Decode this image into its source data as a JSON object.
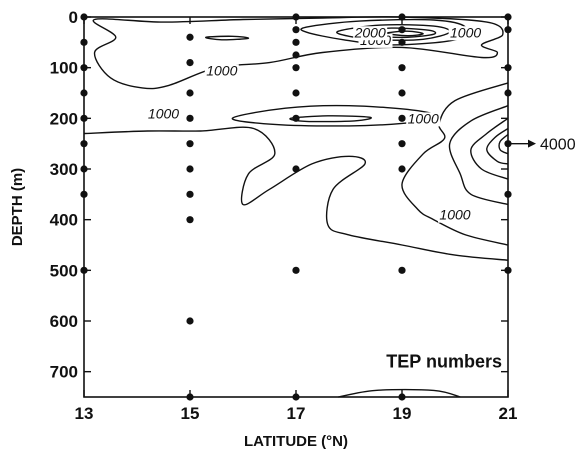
{
  "chart_data": {
    "type": "contour",
    "xlabel": "LATITUDE (°N)",
    "ylabel": "DEPTH (m)",
    "xlim": [
      13,
      21
    ],
    "ylim": [
      750,
      0
    ],
    "x_ticks": [
      13,
      15,
      17,
      19,
      21
    ],
    "y_ticks": [
      0,
      100,
      200,
      300,
      400,
      500,
      600,
      700
    ],
    "grid": false,
    "annotation": "TEP numbers",
    "off_axis_label": "4000",
    "contour_labels": [
      {
        "text": "1000",
        "lat": 15.6,
        "depth": 115
      },
      {
        "text": "1000",
        "lat": 14.5,
        "depth": 200
      },
      {
        "text": "1000",
        "lat": 19.4,
        "depth": 210
      },
      {
        "text": "1000",
        "lat": 20.0,
        "depth": 400
      },
      {
        "text": "1000",
        "lat": 18.5,
        "depth": 55
      },
      {
        "text": "2000",
        "lat": 18.4,
        "depth": 40
      },
      {
        "text": "1000",
        "lat": 20.2,
        "depth": 40
      }
    ],
    "sample_points": [
      {
        "lat": 13,
        "depth": 0
      },
      {
        "lat": 13,
        "depth": 50
      },
      {
        "lat": 13,
        "depth": 100
      },
      {
        "lat": 13,
        "depth": 150
      },
      {
        "lat": 13,
        "depth": 200
      },
      {
        "lat": 13,
        "depth": 250
      },
      {
        "lat": 13,
        "depth": 300
      },
      {
        "lat": 13,
        "depth": 350
      },
      {
        "lat": 13,
        "depth": 500
      },
      {
        "lat": 15,
        "depth": 40
      },
      {
        "lat": 15,
        "depth": 90
      },
      {
        "lat": 15,
        "depth": 150
      },
      {
        "lat": 15,
        "depth": 200
      },
      {
        "lat": 15,
        "depth": 250
      },
      {
        "lat": 15,
        "depth": 300
      },
      {
        "lat": 15,
        "depth": 350
      },
      {
        "lat": 15,
        "depth": 400
      },
      {
        "lat": 15,
        "depth": 600
      },
      {
        "lat": 15,
        "depth": 750
      },
      {
        "lat": 17,
        "depth": 0
      },
      {
        "lat": 17,
        "depth": 25
      },
      {
        "lat": 17,
        "depth": 50
      },
      {
        "lat": 17,
        "depth": 75
      },
      {
        "lat": 17,
        "depth": 100
      },
      {
        "lat": 17,
        "depth": 150
      },
      {
        "lat": 17,
        "depth": 200
      },
      {
        "lat": 17,
        "depth": 300
      },
      {
        "lat": 17,
        "depth": 500
      },
      {
        "lat": 17,
        "depth": 750
      },
      {
        "lat": 19,
        "depth": 0
      },
      {
        "lat": 19,
        "depth": 25
      },
      {
        "lat": 19,
        "depth": 50
      },
      {
        "lat": 19,
        "depth": 100
      },
      {
        "lat": 19,
        "depth": 150
      },
      {
        "lat": 19,
        "depth": 200
      },
      {
        "lat": 19,
        "depth": 250
      },
      {
        "lat": 19,
        "depth": 300
      },
      {
        "lat": 19,
        "depth": 500
      },
      {
        "lat": 19,
        "depth": 750
      },
      {
        "lat": 21,
        "depth": 0
      },
      {
        "lat": 21,
        "depth": 25
      },
      {
        "lat": 21,
        "depth": 100
      },
      {
        "lat": 21,
        "depth": 150
      },
      {
        "lat": 21,
        "depth": 250
      },
      {
        "lat": 21,
        "depth": 350
      },
      {
        "lat": 21,
        "depth": 500
      }
    ],
    "contours": [
      {
        "name": "shallow-left-loop",
        "points": [
          [
            13.2,
            5
          ],
          [
            14.5,
            10
          ],
          [
            16,
            5
          ],
          [
            17.5,
            2
          ],
          [
            19,
            0
          ],
          [
            20.6,
            10
          ],
          [
            20.9,
            35
          ],
          [
            20.5,
            55
          ],
          [
            20.8,
            70
          ],
          [
            20.5,
            80
          ],
          [
            19,
            60
          ],
          [
            17.5,
            70
          ],
          [
            16.5,
            90
          ],
          [
            15.5,
            100
          ],
          [
            14.6,
            135
          ],
          [
            14.1,
            140
          ],
          [
            13.5,
            120
          ],
          [
            13.2,
            70
          ],
          [
            13.6,
            40
          ],
          [
            13.2,
            5
          ]
        ],
        "closed": true
      },
      {
        "name": "mid-lens",
        "points": [
          [
            15.8,
            200
          ],
          [
            16.8,
            180
          ],
          [
            18,
            175
          ],
          [
            19.3,
            185
          ],
          [
            19.7,
            200
          ],
          [
            19,
            210
          ],
          [
            18,
            215
          ],
          [
            16.6,
            212
          ],
          [
            15.8,
            200
          ]
        ],
        "closed": true
      },
      {
        "name": "small-lens-17-200",
        "points": [
          [
            16.9,
            200
          ],
          [
            17.6,
            195
          ],
          [
            18.4,
            198
          ],
          [
            18.1,
            205
          ],
          [
            17.2,
            206
          ],
          [
            16.9,
            200
          ]
        ],
        "closed": true
      },
      {
        "name": "thin-tick-15-40",
        "points": [
          [
            15.3,
            40
          ],
          [
            15.8,
            38
          ],
          [
            16.1,
            42
          ],
          [
            15.6,
            45
          ],
          [
            15.3,
            40
          ]
        ],
        "closed": true
      },
      {
        "name": "surface-bullseye-1",
        "points": [
          [
            17.2,
            20
          ],
          [
            18.2,
            8
          ],
          [
            19.6,
            6
          ],
          [
            20.2,
            20
          ],
          [
            20.0,
            45
          ],
          [
            18.8,
            55
          ],
          [
            17.9,
            45
          ],
          [
            17.2,
            30
          ],
          [
            17.2,
            20
          ]
        ],
        "closed": true
      },
      {
        "name": "surface-bullseye-2",
        "points": [
          [
            17.8,
            28
          ],
          [
            18.6,
            16
          ],
          [
            19.6,
            18
          ],
          [
            19.9,
            30
          ],
          [
            19.4,
            44
          ],
          [
            18.6,
            45
          ],
          [
            18.0,
            38
          ],
          [
            17.8,
            28
          ]
        ],
        "closed": true
      },
      {
        "name": "surface-bullseye-3",
        "points": [
          [
            18.3,
            30
          ],
          [
            18.8,
            22
          ],
          [
            19.5,
            26
          ],
          [
            19.6,
            34
          ],
          [
            19.1,
            40
          ],
          [
            18.6,
            38
          ],
          [
            18.3,
            30
          ]
        ],
        "closed": true
      },
      {
        "name": "surface-bullseye-4",
        "points": [
          [
            18.7,
            32
          ],
          [
            19.1,
            28
          ],
          [
            19.4,
            33
          ],
          [
            19.1,
            37
          ],
          [
            18.7,
            32
          ]
        ],
        "closed": true
      },
      {
        "name": "right-cone-1",
        "points": [
          [
            21,
            130
          ],
          [
            20.0,
            165
          ],
          [
            19.7,
            210
          ],
          [
            19.8,
            240
          ],
          [
            19.4,
            270
          ],
          [
            19.0,
            330
          ],
          [
            19.3,
            380
          ],
          [
            19.6,
            400
          ],
          [
            20.2,
            430
          ],
          [
            21,
            450
          ]
        ],
        "closed": false
      },
      {
        "name": "right-cone-2",
        "points": [
          [
            21,
            175
          ],
          [
            20.3,
            205
          ],
          [
            19.9,
            250
          ],
          [
            20.1,
            310
          ],
          [
            20.3,
            350
          ],
          [
            21,
            370
          ]
        ],
        "closed": false
      },
      {
        "name": "right-cone-3",
        "points": [
          [
            21,
            200
          ],
          [
            20.6,
            230
          ],
          [
            20.3,
            262
          ],
          [
            20.5,
            300
          ],
          [
            21,
            320
          ]
        ],
        "closed": false
      },
      {
        "name": "right-cone-4",
        "points": [
          [
            21,
            220
          ],
          [
            20.75,
            238
          ],
          [
            20.6,
            262
          ],
          [
            20.8,
            285
          ],
          [
            21,
            290
          ]
        ],
        "closed": false
      },
      {
        "name": "right-cone-5",
        "points": [
          [
            21,
            232
          ],
          [
            20.85,
            246
          ],
          [
            20.85,
            262
          ],
          [
            21,
            270
          ]
        ],
        "closed": false
      },
      {
        "name": "deep-1000-line",
        "points": [
          [
            13,
            230
          ],
          [
            14.2,
            225
          ],
          [
            15.2,
            225
          ],
          [
            16.2,
            220
          ],
          [
            16.6,
            270
          ],
          [
            16.1,
            310
          ],
          [
            16.0,
            370
          ],
          [
            16.5,
            340
          ],
          [
            17.3,
            290
          ],
          [
            18.0,
            275
          ],
          [
            18.3,
            290
          ],
          [
            17.7,
            340
          ],
          [
            17.6,
            410
          ],
          [
            18.0,
            430
          ],
          [
            19.0,
            450
          ],
          [
            20.0,
            470
          ],
          [
            21,
            480
          ]
        ],
        "closed": false
      },
      {
        "name": "bottom-contour",
        "points": [
          [
            17.8,
            750
          ],
          [
            18.5,
            737
          ],
          [
            19.6,
            737
          ],
          [
            20.1,
            750
          ]
        ],
        "closed": false
      }
    ]
  }
}
